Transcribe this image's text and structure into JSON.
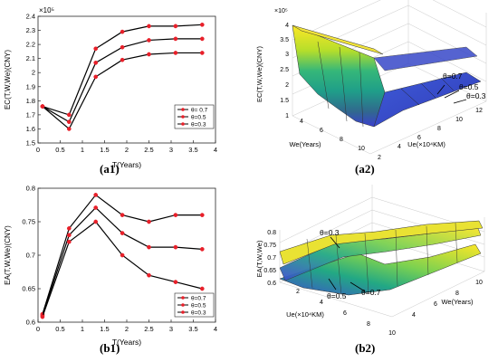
{
  "panels": {
    "a1": {
      "caption": "(a1)"
    },
    "a2": {
      "caption": "(a2)"
    },
    "b1": {
      "caption": "(b1)"
    },
    "b2": {
      "caption": "(b2)"
    }
  },
  "colors": {
    "series_line": "#000000",
    "series_marker": "#e8202a"
  },
  "chart_data": [
    {
      "id": "a1",
      "type": "line",
      "xlabel": "T(Years)",
      "ylabel": "EC(T,W,We)(CNY)",
      "exponent_label": "×10⁵",
      "xlim": [
        0,
        4
      ],
      "ylim": [
        1.5,
        2.4
      ],
      "xticks": [
        "0",
        "0.5",
        "1",
        "1.5",
        "2",
        "2.5",
        "3",
        "3.5",
        "4"
      ],
      "yticks": [
        "1.5",
        "1.6",
        "1.7",
        "1.8",
        "1.9",
        "2",
        "2.1",
        "2.2",
        "2.3",
        "2.4"
      ],
      "legend_position": "bottom-right",
      "x": [
        0.1,
        0.7,
        1.3,
        1.9,
        2.5,
        3.1,
        3.7
      ],
      "series": [
        {
          "name": "θ= 0.7",
          "values": [
            1.76,
            1.7,
            2.17,
            2.29,
            2.33,
            2.33,
            2.34
          ]
        },
        {
          "name": "θ=0.5",
          "values": [
            1.76,
            1.65,
            2.07,
            2.18,
            2.23,
            2.24,
            2.24
          ]
        },
        {
          "name": "θ=0.3",
          "values": [
            1.76,
            1.6,
            1.97,
            2.09,
            2.13,
            2.14,
            2.14
          ]
        }
      ]
    },
    {
      "id": "a2",
      "type": "surface",
      "xlabel": "We(Years)",
      "ylabel": "Ue(×10⁴KM)",
      "zlabel": "EC(T,W,We)(CNY)",
      "exponent_label": "×10⁵",
      "xticks": [
        "4",
        "6",
        "8",
        "10"
      ],
      "yticks": [
        "2",
        "4",
        "6",
        "8",
        "10",
        "12"
      ],
      "zticks": [
        "1",
        "1.5",
        "2",
        "2.5",
        "3",
        "3.5",
        "4"
      ],
      "annotations": [
        "θ=0.7",
        "θ=0.5",
        "θ=0.3"
      ]
    },
    {
      "id": "b1",
      "type": "line",
      "xlabel": "T(Years)",
      "ylabel": "EA(T,W,We)(CNY)",
      "xlim": [
        0,
        4
      ],
      "ylim": [
        0.6,
        0.8
      ],
      "xticks": [
        "0",
        "0.5",
        "1",
        "1.5",
        "2",
        "2.5",
        "3",
        "3.5",
        "4"
      ],
      "yticks": [
        "0.6",
        "0.65",
        "0.7",
        "0.75",
        "0.8"
      ],
      "legend_position": "bottom-right",
      "x": [
        0.1,
        0.7,
        1.3,
        1.9,
        2.5,
        3.1,
        3.7
      ],
      "series": [
        {
          "name": "θ=0.7",
          "values": [
            0.612,
            0.74,
            0.79,
            0.76,
            0.75,
            0.76,
            0.76
          ]
        },
        {
          "name": "θ=0.5",
          "values": [
            0.61,
            0.73,
            0.771,
            0.733,
            0.712,
            0.712,
            0.709
          ]
        },
        {
          "name": "θ=0.3",
          "values": [
            0.608,
            0.72,
            0.75,
            0.7,
            0.67,
            0.66,
            0.65
          ]
        }
      ]
    },
    {
      "id": "b2",
      "type": "surface",
      "xlabel": "Ue(×10⁴KM)",
      "ylabel": "We(Years)",
      "zlabel": "EA(T,W,We)",
      "xticks": [
        "2",
        "4",
        "6",
        "8",
        "10"
      ],
      "yticks": [
        "4",
        "6",
        "8",
        "10"
      ],
      "zticks": [
        "0.6",
        "0.65",
        "0.7",
        "0.75",
        "0.8"
      ],
      "annotations": [
        "θ=0.3",
        "θ=0.5",
        "θ=0.7"
      ]
    }
  ]
}
